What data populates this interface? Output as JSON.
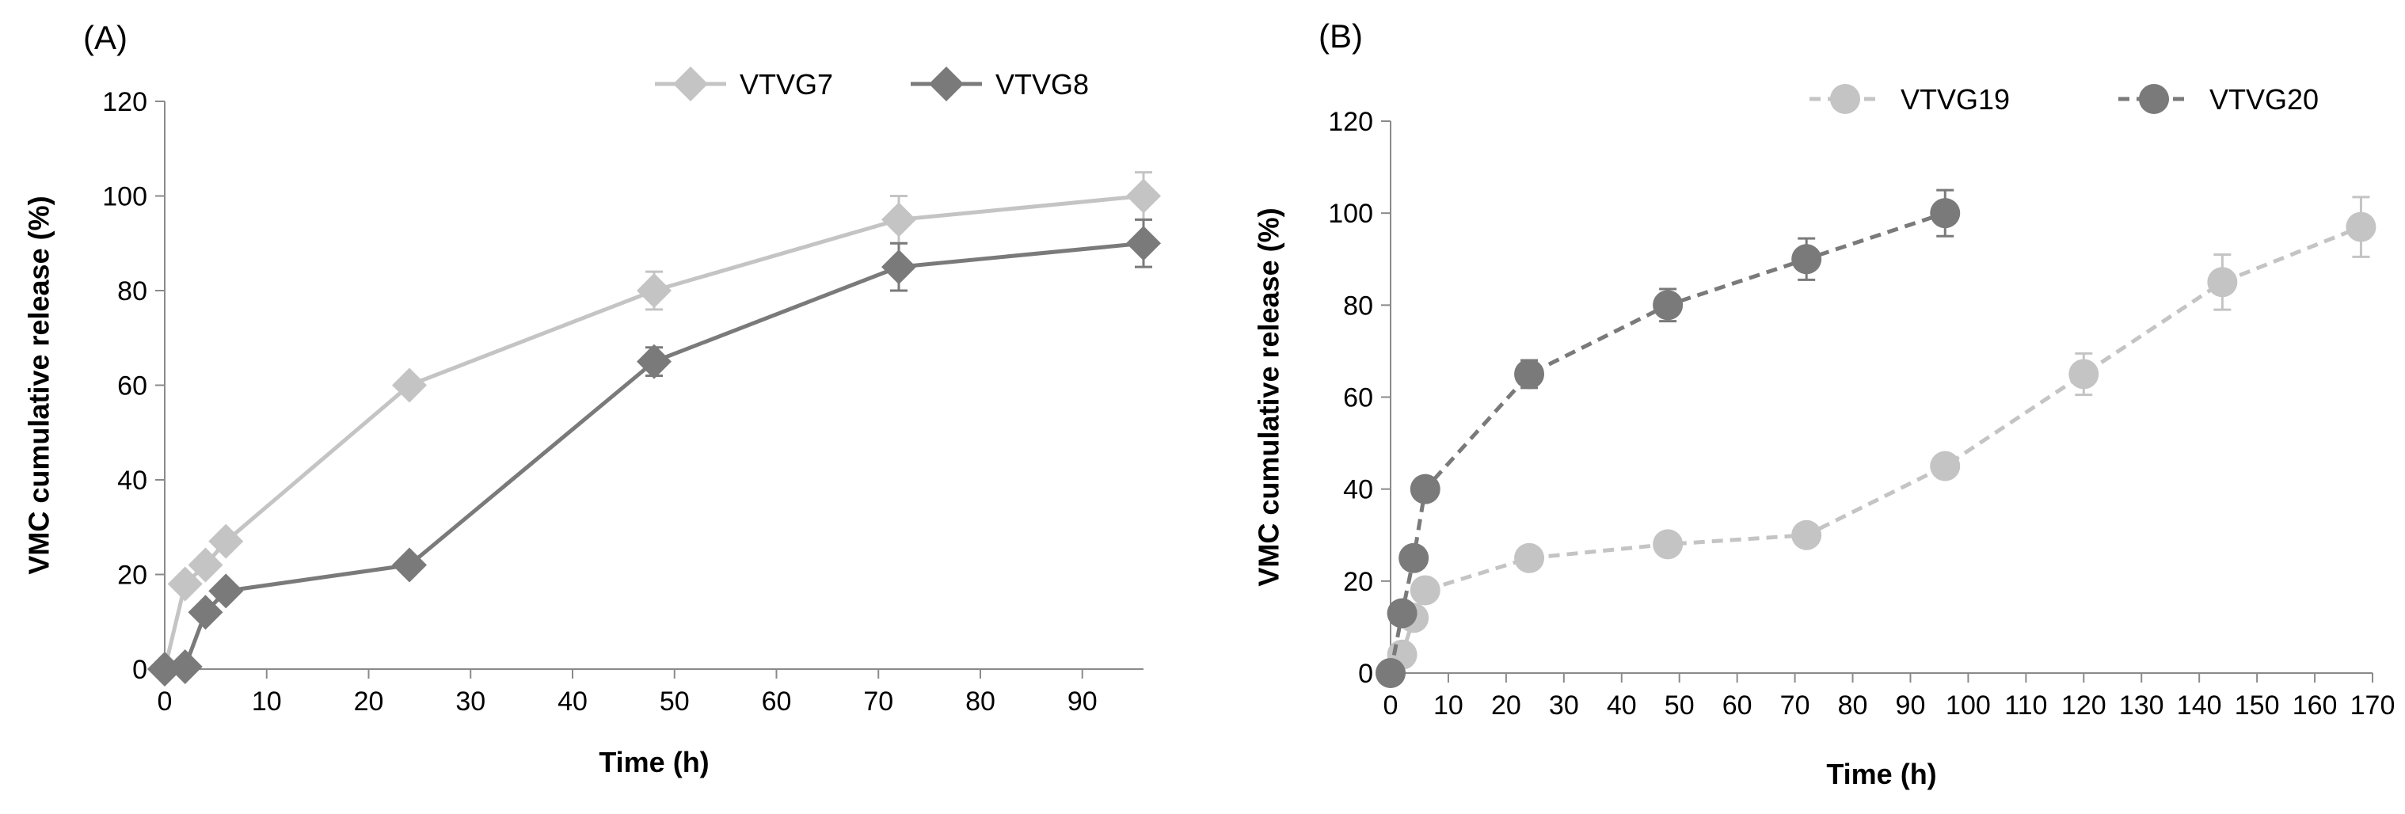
{
  "chart_data": [
    {
      "type": "line",
      "panel_label": "(A)",
      "xlabel": "Time (h)",
      "ylabel": "VMC cumulative release (%)",
      "xlim": [
        0,
        96
      ],
      "ylim": [
        0,
        120
      ],
      "xticks": [
        0,
        10,
        20,
        30,
        40,
        50,
        60,
        70,
        80,
        90
      ],
      "yticks": [
        0,
        20,
        40,
        60,
        80,
        100,
        120
      ],
      "legend_position": "top",
      "marker": "diamond",
      "line_style": "solid",
      "series": [
        {
          "name": "VTVG7",
          "color": "#c4c4c4",
          "x": [
            0,
            2,
            4,
            6,
            24,
            48,
            72,
            96
          ],
          "y": [
            0,
            18,
            22,
            27,
            60,
            80,
            95,
            100
          ],
          "error": [
            0,
            0,
            0,
            0,
            0,
            4,
            5,
            5
          ]
        },
        {
          "name": "VTVG8",
          "color": "#7a7a7a",
          "x": [
            0,
            2,
            4,
            6,
            24,
            48,
            72,
            96
          ],
          "y": [
            0,
            0.5,
            12,
            16.5,
            22,
            65,
            85,
            90
          ],
          "error": [
            0,
            0,
            0,
            0,
            0,
            3,
            5,
            5
          ]
        }
      ]
    },
    {
      "type": "line",
      "panel_label": "(B)",
      "xlabel": "Time (h)",
      "ylabel": "VMC cumulative release (%)",
      "xlim": [
        0,
        170
      ],
      "ylim": [
        0,
        120
      ],
      "xticks": [
        0,
        10,
        20,
        30,
        40,
        50,
        60,
        70,
        80,
        90,
        100,
        110,
        120,
        130,
        140,
        150,
        160,
        170
      ],
      "yticks": [
        0,
        20,
        40,
        60,
        80,
        100,
        120
      ],
      "legend_position": "top",
      "marker": "circle",
      "line_style": "dashed",
      "series": [
        {
          "name": "VTVG19",
          "color": "#c4c4c4",
          "x": [
            0,
            2,
            4,
            6,
            24,
            48,
            72,
            96,
            120,
            144,
            168
          ],
          "y": [
            0,
            4,
            12,
            18,
            25,
            28,
            30,
            45,
            65,
            85,
            97
          ],
          "error": [
            0,
            0,
            0,
            0,
            0,
            0,
            0,
            0,
            4.5,
            6,
            6.5
          ]
        },
        {
          "name": "VTVG20",
          "color": "#7a7a7a",
          "x": [
            0,
            2,
            4,
            6,
            24,
            48,
            72,
            96
          ],
          "y": [
            0,
            13,
            25,
            40,
            65,
            80,
            90,
            100
          ],
          "error": [
            0,
            0,
            0,
            0,
            3,
            3.5,
            4.5,
            5
          ]
        }
      ]
    }
  ]
}
